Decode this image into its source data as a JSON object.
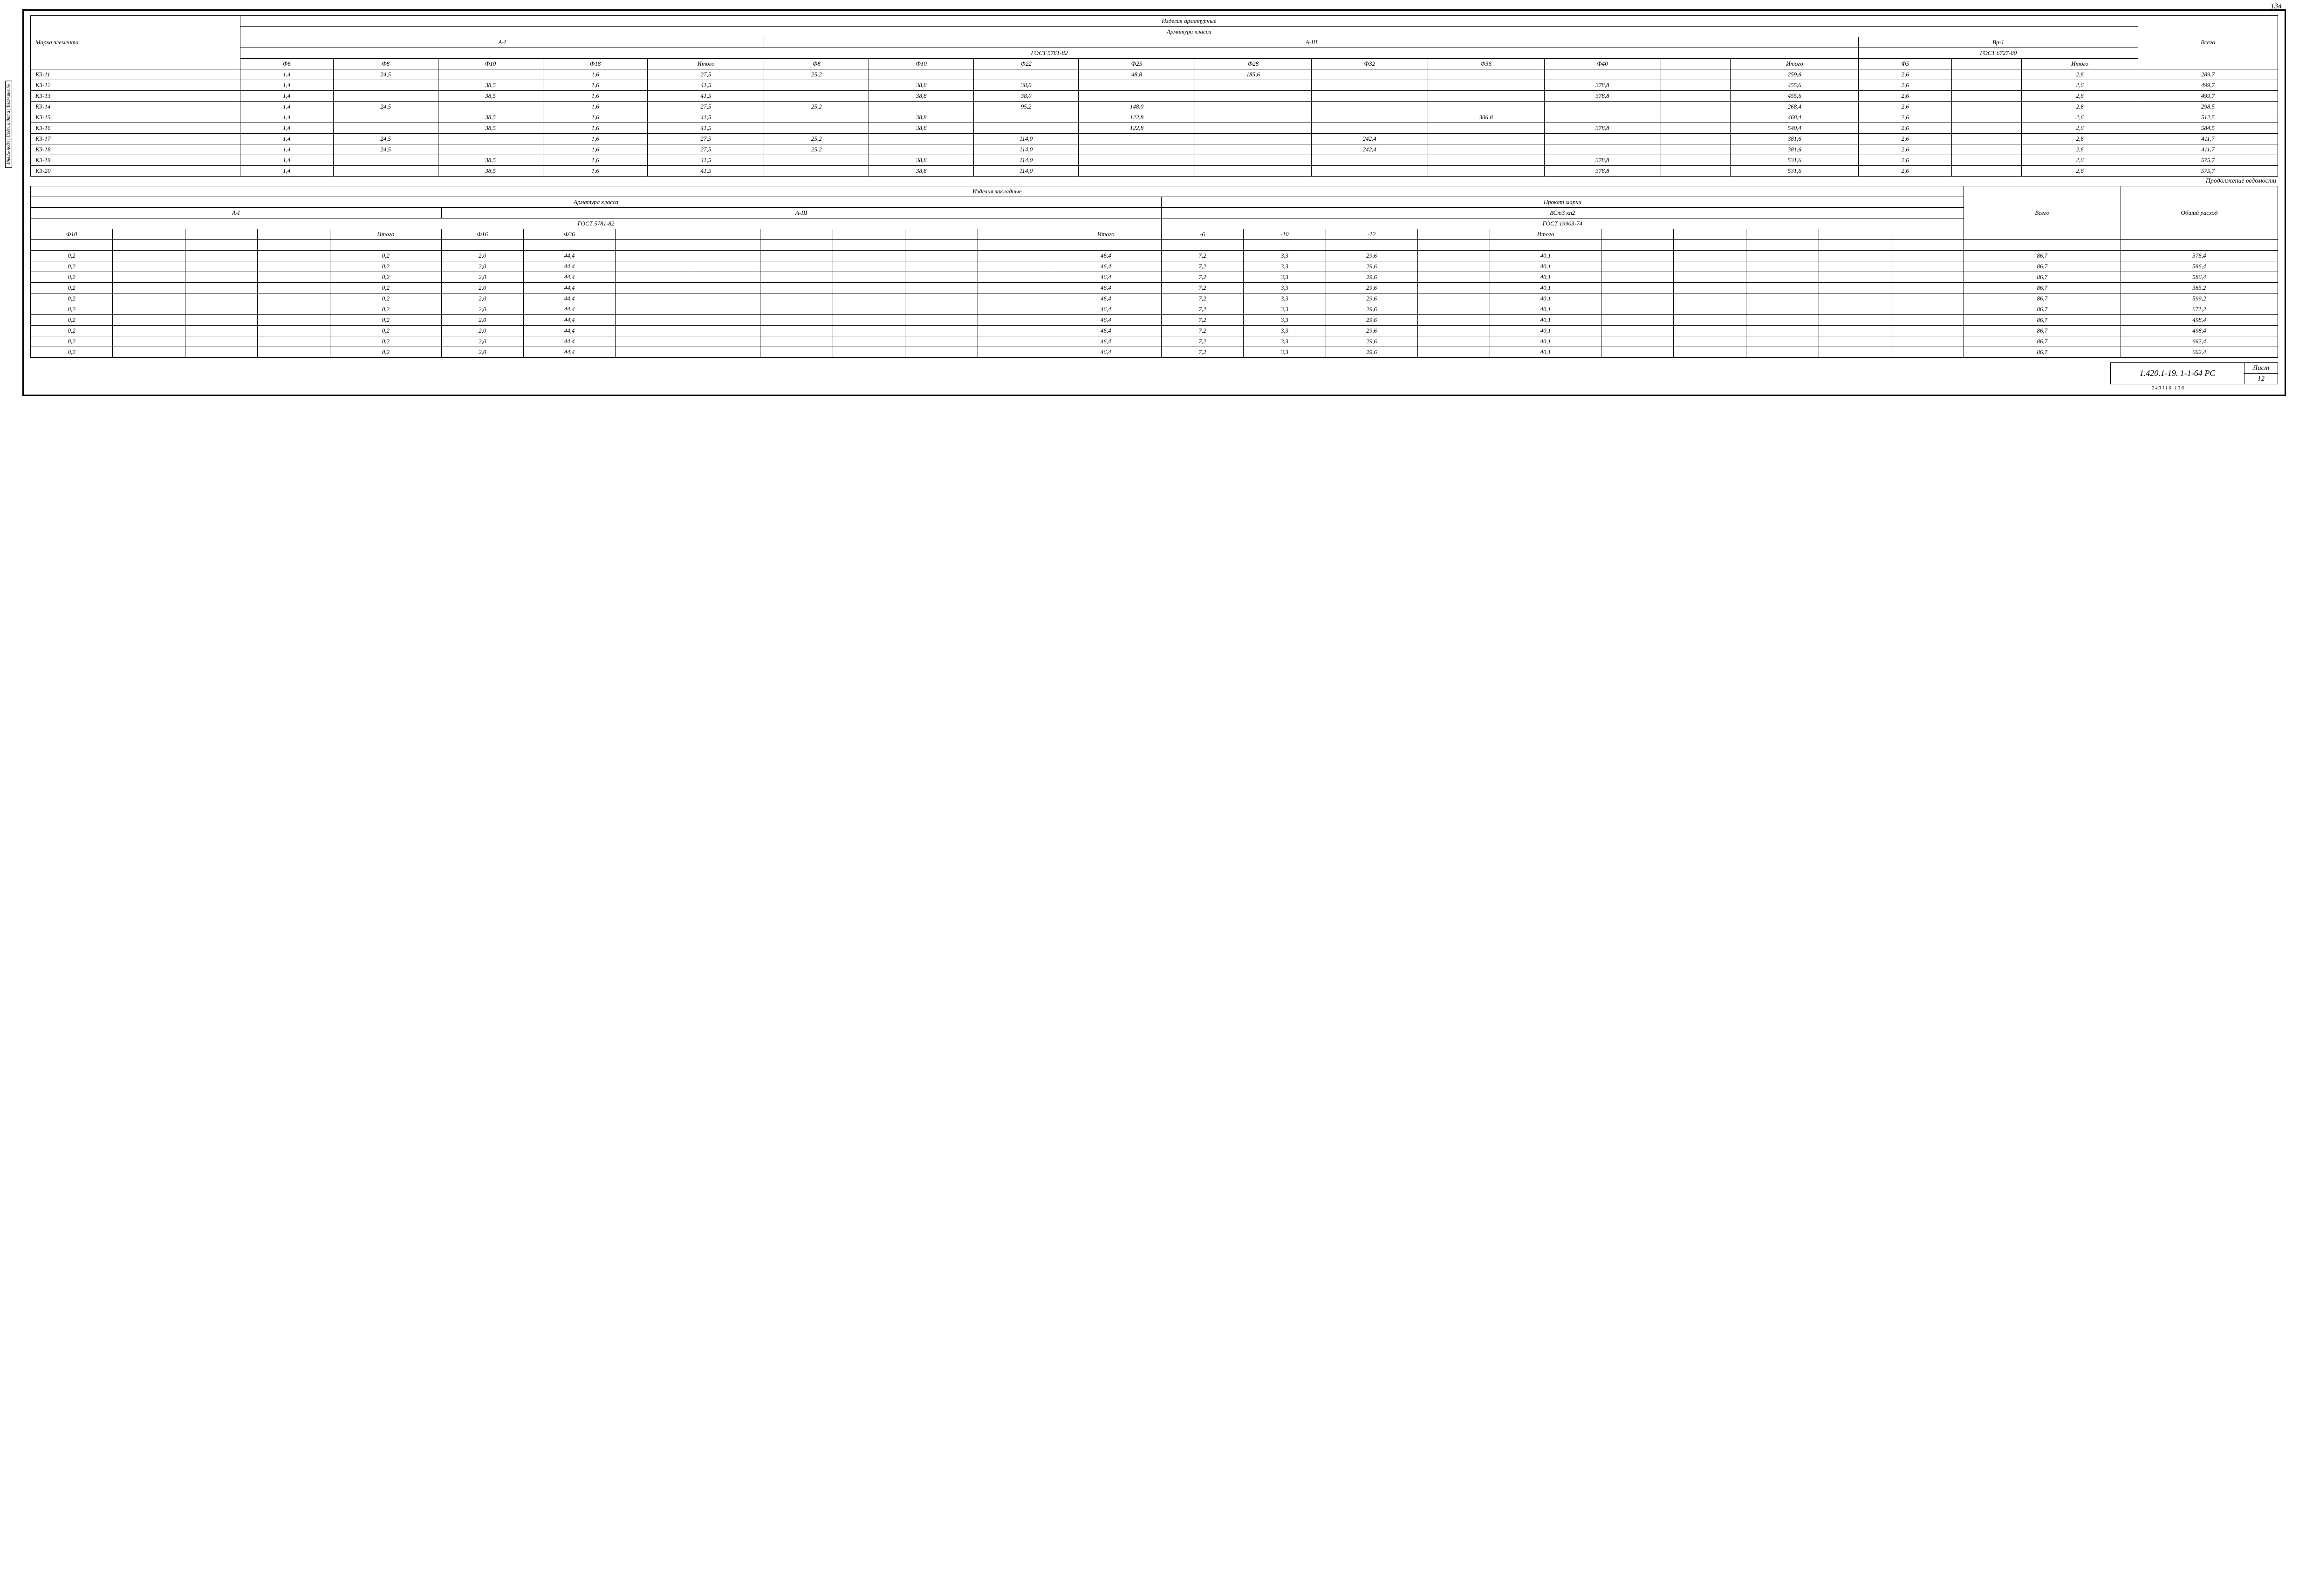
{
  "page_top": "134",
  "top": {
    "super_title": "Изделия арматурные",
    "class_title": "Арматура класса",
    "a1": "A-I",
    "a3": "A-III",
    "bp1": "Вр-1",
    "gost_a": "ГОСТ 5781-82",
    "gost_b": "ГОСТ 6727-80",
    "mark_label": "Марка\nэлемента",
    "total_label": "Всего",
    "cols": [
      "Ф6",
      "Ф8",
      "Ф10",
      "Ф18",
      "Итого",
      "Ф8",
      "Ф10",
      "Ф22",
      "Ф25",
      "Ф28",
      "Ф32",
      "Ф36",
      "Ф40",
      "",
      "Итого",
      "Ф5",
      "",
      "Итого"
    ],
    "rows": [
      {
        "m": "К3-11",
        "c": [
          "1,4",
          "24,5",
          "",
          "1,6",
          "27,5",
          "25,2",
          "",
          "",
          "48,8",
          "185,6",
          "",
          "",
          "",
          "",
          "259,6",
          "2,6",
          "",
          "2,6"
        ],
        "t": "289,7"
      },
      {
        "m": "К3-12",
        "c": [
          "1,4",
          "",
          "38,5",
          "1,6",
          "41,5",
          "",
          "38,8",
          "38,0",
          "",
          "",
          "",
          "",
          "378,8",
          "",
          "455,6",
          "2,6",
          "",
          "2,6"
        ],
        "t": "499,7"
      },
      {
        "m": "К3-13",
        "c": [
          "1,4",
          "",
          "38,5",
          "1,6",
          "41,5",
          "",
          "38,8",
          "38,0",
          "",
          "",
          "",
          "",
          "378,8",
          "",
          "455,6",
          "2,6",
          "",
          "2,6"
        ],
        "t": "499,7"
      },
      {
        "m": "К3-14",
        "c": [
          "1,4",
          "24,5",
          "",
          "1,6",
          "27,5",
          "25,2",
          "",
          "95,2",
          "148,0",
          "",
          "",
          "",
          "",
          "",
          "268,4",
          "2,6",
          "",
          "2,6"
        ],
        "t": "298,5"
      },
      {
        "m": "К3-15",
        "c": [
          "1,4",
          "",
          "38,5",
          "1,6",
          "41,5",
          "",
          "38,8",
          "",
          "122,8",
          "",
          "",
          "306,8",
          "",
          "",
          "468,4",
          "2,6",
          "",
          "2,6"
        ],
        "t": "512,5"
      },
      {
        "m": "К3-16",
        "c": [
          "1,4",
          "",
          "38,5",
          "1,6",
          "41,5",
          "",
          "38,8",
          "",
          "122,8",
          "",
          "",
          "",
          "378,8",
          "",
          "540,4",
          "2,6",
          "",
          "2,6"
        ],
        "t": "584,5"
      },
      {
        "m": "К3-17",
        "c": [
          "1,4",
          "24,5",
          "",
          "1,6",
          "27,5",
          "25,2",
          "",
          "114,0",
          "",
          "",
          "242,4",
          "",
          "",
          "",
          "381,6",
          "2,6",
          "",
          "2,6"
        ],
        "t": "411,7"
      },
      {
        "m": "К3-18",
        "c": [
          "1,4",
          "24,5",
          "",
          "1,6",
          "27,5",
          "25,2",
          "",
          "114,0",
          "",
          "",
          "242,4",
          "",
          "",
          "",
          "381,6",
          "2,6",
          "",
          "2,6"
        ],
        "t": "411,7"
      },
      {
        "m": "К3-19",
        "c": [
          "1,4",
          "",
          "38,5",
          "1,6",
          "41,5",
          "",
          "38,8",
          "114,0",
          "",
          "",
          "",
          "",
          "378,8",
          "",
          "531,6",
          "2,6",
          "",
          "2,6"
        ],
        "t": "575,7"
      },
      {
        "m": "К3-20",
        "c": [
          "1,4",
          "",
          "38,5",
          "1,6",
          "41,5",
          "",
          "38,8",
          "114,0",
          "",
          "",
          "",
          "",
          "378,8",
          "",
          "531,6",
          "2,6",
          "",
          "2,6"
        ],
        "t": "575,7"
      }
    ]
  },
  "continuation": "Продолжение ведомости",
  "bottom": {
    "super_title": "Изделия закладные",
    "class_title": "Арматура класса",
    "prokat_title": "Прокат марки",
    "a1": "A-I",
    "a3": "A-III",
    "bst": "ВСт3 кп2",
    "gost_a": "ГОСТ 5781-82",
    "gost_b": "ГОСТ 19903-74",
    "total_label": "Всего",
    "grand_label": "Общий\nрасход",
    "cols": [
      "Ф10",
      "",
      "",
      "",
      "Итого",
      "Ф16",
      "Ф36",
      "",
      "",
      "",
      "",
      "",
      "",
      "Итого",
      "-6",
      "-10",
      "-12",
      "",
      "Итого",
      "",
      "",
      "",
      "",
      ""
    ],
    "rows": [
      {
        "c": [
          "0,2",
          "",
          "",
          "",
          "0,2",
          "2,0",
          "44,4",
          "",
          "",
          "",
          "",
          "",
          "",
          "46,4",
          "7,2",
          "3,3",
          "29,6",
          "",
          "40,1",
          "",
          "",
          "",
          "",
          ""
        ],
        "t": "86,7",
        "g": "376,4"
      },
      {
        "c": [
          "0,2",
          "",
          "",
          "",
          "0,2",
          "2,0",
          "44,4",
          "",
          "",
          "",
          "",
          "",
          "",
          "46,4",
          "7,2",
          "3,3",
          "29,6",
          "",
          "40,1",
          "",
          "",
          "",
          "",
          ""
        ],
        "t": "86,7",
        "g": "586,4"
      },
      {
        "c": [
          "0,2",
          "",
          "",
          "",
          "0,2",
          "2,0",
          "44,4",
          "",
          "",
          "",
          "",
          "",
          "",
          "46,4",
          "7,2",
          "3,3",
          "29,6",
          "",
          "40,1",
          "",
          "",
          "",
          "",
          ""
        ],
        "t": "86,7",
        "g": "586,4"
      },
      {
        "c": [
          "0,2",
          "",
          "",
          "",
          "0,2",
          "2,0",
          "44,4",
          "",
          "",
          "",
          "",
          "",
          "",
          "46,4",
          "7,2",
          "3,3",
          "29,6",
          "",
          "40,1",
          "",
          "",
          "",
          "",
          ""
        ],
        "t": "86,7",
        "g": "385,2"
      },
      {
        "c": [
          "0,2",
          "",
          "",
          "",
          "0,2",
          "2,0",
          "44,4",
          "",
          "",
          "",
          "",
          "",
          "",
          "46,4",
          "7,2",
          "3,3",
          "29,6",
          "",
          "40,1",
          "",
          "",
          "",
          "",
          ""
        ],
        "t": "86,7",
        "g": "599,2"
      },
      {
        "c": [
          "0,2",
          "",
          "",
          "",
          "0,2",
          "2,0",
          "44,4",
          "",
          "",
          "",
          "",
          "",
          "",
          "46,4",
          "7,2",
          "3,3",
          "29,6",
          "",
          "40,1",
          "",
          "",
          "",
          "",
          ""
        ],
        "t": "86,7",
        "g": "671,2"
      },
      {
        "c": [
          "0,2",
          "",
          "",
          "",
          "0,2",
          "2,0",
          "44,4",
          "",
          "",
          "",
          "",
          "",
          "",
          "46,4",
          "7,2",
          "3,3",
          "29,6",
          "",
          "40,1",
          "",
          "",
          "",
          "",
          ""
        ],
        "t": "86,7",
        "g": "498,4"
      },
      {
        "c": [
          "0,2",
          "",
          "",
          "",
          "0,2",
          "2,0",
          "44,4",
          "",
          "",
          "",
          "",
          "",
          "",
          "46,4",
          "7,2",
          "3,3",
          "29,6",
          "",
          "40,1",
          "",
          "",
          "",
          "",
          ""
        ],
        "t": "86,7",
        "g": "498,4"
      },
      {
        "c": [
          "0,2",
          "",
          "",
          "",
          "0,2",
          "2,0",
          "44,4",
          "",
          "",
          "",
          "",
          "",
          "",
          "46,4",
          "7,2",
          "3,3",
          "29,6",
          "",
          "40,1",
          "",
          "",
          "",
          "",
          ""
        ],
        "t": "86,7",
        "g": "662,4"
      },
      {
        "c": [
          "0,2",
          "",
          "",
          "",
          "0,2",
          "2,0",
          "44,4",
          "",
          "",
          "",
          "",
          "",
          "",
          "46,4",
          "7,2",
          "3,3",
          "29,6",
          "",
          "40,1",
          "",
          "",
          "",
          "",
          ""
        ],
        "t": "86,7",
        "g": "662,4"
      }
    ]
  },
  "title_block": {
    "drawing_no": "1.420.1-19. 1-1-64 РС",
    "sheet_label": "Лист",
    "sheet_no": "12"
  },
  "footer": "243110   136",
  "side_strip": "Инв.№ подл | Подп. и дата | Взам.инв.№"
}
